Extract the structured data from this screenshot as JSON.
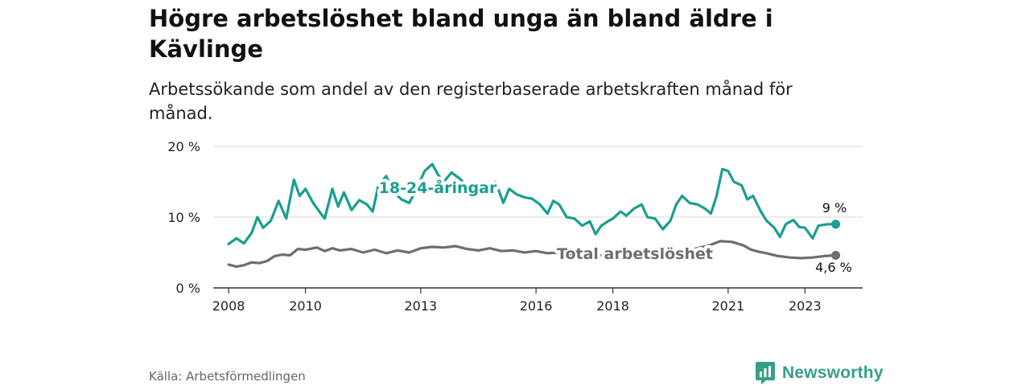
{
  "title": "Högre arbetslöshet bland unga än bland äldre i Kävlinge",
  "subtitle": "Arbetssökande som andel av den registerbaserade arbetskraften månad för månad.",
  "source": "Källa: Arbetsförmedlingen",
  "brand": {
    "name": "Newsworthy",
    "icon": "newsworthy-logo-icon",
    "color": "#35a087"
  },
  "chart_data": {
    "type": "line",
    "y_ticks": [
      {
        "value": 0,
        "label": "0 %"
      },
      {
        "value": 10,
        "label": "10 %"
      },
      {
        "value": 20,
        "label": "20 %"
      }
    ],
    "x_ticks": [
      {
        "value": 2008,
        "label": "2008"
      },
      {
        "value": 2010,
        "label": "2010"
      },
      {
        "value": 2013,
        "label": "2013"
      },
      {
        "value": 2016,
        "label": "2016"
      },
      {
        "value": 2018,
        "label": "2018"
      },
      {
        "value": 2021,
        "label": "2021"
      },
      {
        "value": 2023,
        "label": "2023"
      }
    ],
    "xlim": [
      2007.6,
      2024.5
    ],
    "ylim": [
      0,
      20
    ],
    "grid": true,
    "series": [
      {
        "name": "18-24-åringar",
        "color": "#1a9e8f",
        "end_label": "9 %",
        "points": [
          [
            2008.0,
            6.2
          ],
          [
            2008.2,
            7.0
          ],
          [
            2008.4,
            6.3
          ],
          [
            2008.6,
            7.8
          ],
          [
            2008.75,
            10.0
          ],
          [
            2008.9,
            8.5
          ],
          [
            2009.1,
            9.5
          ],
          [
            2009.3,
            12.3
          ],
          [
            2009.5,
            9.8
          ],
          [
            2009.7,
            15.3
          ],
          [
            2009.85,
            13.0
          ],
          [
            2010.0,
            14.0
          ],
          [
            2010.2,
            12.0
          ],
          [
            2010.4,
            10.5
          ],
          [
            2010.5,
            9.8
          ],
          [
            2010.7,
            14.0
          ],
          [
            2010.85,
            11.5
          ],
          [
            2011.0,
            13.5
          ],
          [
            2011.2,
            11.0
          ],
          [
            2011.4,
            12.4
          ],
          [
            2011.6,
            11.8
          ],
          [
            2011.75,
            10.8
          ],
          [
            2011.9,
            14.5
          ],
          [
            2012.1,
            15.8
          ],
          [
            2012.3,
            13.5
          ],
          [
            2012.5,
            12.5
          ],
          [
            2012.7,
            12.0
          ],
          [
            2012.9,
            14.0
          ],
          [
            2013.1,
            16.5
          ],
          [
            2013.3,
            17.5
          ],
          [
            2013.45,
            16.0
          ],
          [
            2013.6,
            15.0
          ],
          [
            2013.8,
            16.3
          ],
          [
            2014.0,
            15.5
          ],
          [
            2014.2,
            14.5
          ],
          [
            2014.4,
            13.5
          ],
          [
            2014.6,
            13.8
          ],
          [
            2014.8,
            14.5
          ],
          [
            2014.95,
            15.0
          ],
          [
            2015.15,
            12.0
          ],
          [
            2015.3,
            14.0
          ],
          [
            2015.5,
            13.2
          ],
          [
            2015.7,
            12.8
          ],
          [
            2015.9,
            12.6
          ],
          [
            2016.1,
            11.8
          ],
          [
            2016.3,
            10.5
          ],
          [
            2016.45,
            12.3
          ],
          [
            2016.6,
            11.8
          ],
          [
            2016.8,
            10.0
          ],
          [
            2017.0,
            9.8
          ],
          [
            2017.2,
            8.8
          ],
          [
            2017.4,
            9.4
          ],
          [
            2017.55,
            7.6
          ],
          [
            2017.7,
            8.8
          ],
          [
            2017.9,
            9.5
          ],
          [
            2018.0,
            9.8
          ],
          [
            2018.2,
            10.8
          ],
          [
            2018.35,
            10.2
          ],
          [
            2018.55,
            11.2
          ],
          [
            2018.75,
            11.8
          ],
          [
            2018.9,
            10.0
          ],
          [
            2019.1,
            9.8
          ],
          [
            2019.3,
            8.3
          ],
          [
            2019.5,
            9.5
          ],
          [
            2019.65,
            11.8
          ],
          [
            2019.8,
            13.0
          ],
          [
            2020.0,
            12.0
          ],
          [
            2020.2,
            11.8
          ],
          [
            2020.4,
            11.2
          ],
          [
            2020.55,
            10.5
          ],
          [
            2020.7,
            13.0
          ],
          [
            2020.85,
            16.8
          ],
          [
            2021.0,
            16.5
          ],
          [
            2021.15,
            15.0
          ],
          [
            2021.35,
            14.5
          ],
          [
            2021.5,
            12.5
          ],
          [
            2021.65,
            13.0
          ],
          [
            2021.85,
            10.8
          ],
          [
            2022.0,
            9.5
          ],
          [
            2022.2,
            8.5
          ],
          [
            2022.35,
            7.2
          ],
          [
            2022.5,
            9.0
          ],
          [
            2022.7,
            9.6
          ],
          [
            2022.85,
            8.6
          ],
          [
            2023.0,
            8.5
          ],
          [
            2023.2,
            7.0
          ],
          [
            2023.35,
            8.8
          ],
          [
            2023.6,
            9.0
          ],
          [
            2023.8,
            9.0
          ]
        ]
      },
      {
        "name": "Total arbetslöshet",
        "color": "#6e6e6e",
        "end_label": "4,6 %",
        "points": [
          [
            2008.0,
            3.3
          ],
          [
            2008.2,
            3.0
          ],
          [
            2008.4,
            3.2
          ],
          [
            2008.6,
            3.6
          ],
          [
            2008.8,
            3.5
          ],
          [
            2009.0,
            3.8
          ],
          [
            2009.2,
            4.5
          ],
          [
            2009.4,
            4.7
          ],
          [
            2009.6,
            4.6
          ],
          [
            2009.8,
            5.5
          ],
          [
            2010.0,
            5.4
          ],
          [
            2010.3,
            5.7
          ],
          [
            2010.5,
            5.2
          ],
          [
            2010.7,
            5.6
          ],
          [
            2010.9,
            5.3
          ],
          [
            2011.2,
            5.5
          ],
          [
            2011.5,
            5.0
          ],
          [
            2011.8,
            5.4
          ],
          [
            2012.1,
            4.9
          ],
          [
            2012.4,
            5.3
          ],
          [
            2012.7,
            5.0
          ],
          [
            2013.0,
            5.6
          ],
          [
            2013.3,
            5.8
          ],
          [
            2013.6,
            5.7
          ],
          [
            2013.9,
            5.9
          ],
          [
            2014.2,
            5.5
          ],
          [
            2014.5,
            5.3
          ],
          [
            2014.8,
            5.6
          ],
          [
            2015.1,
            5.2
          ],
          [
            2015.4,
            5.3
          ],
          [
            2015.7,
            5.0
          ],
          [
            2016.0,
            5.2
          ],
          [
            2016.3,
            4.9
          ],
          [
            2016.6,
            5.0
          ],
          [
            2016.9,
            4.7
          ],
          [
            2017.2,
            4.6
          ],
          [
            2017.5,
            4.8
          ],
          [
            2017.8,
            4.5
          ],
          [
            2018.1,
            4.6
          ],
          [
            2018.4,
            4.5
          ],
          [
            2018.7,
            4.7
          ],
          [
            2019.0,
            4.6
          ],
          [
            2019.3,
            4.8
          ],
          [
            2019.6,
            5.0
          ],
          [
            2019.9,
            5.2
          ],
          [
            2020.2,
            5.6
          ],
          [
            2020.5,
            6.0
          ],
          [
            2020.8,
            6.6
          ],
          [
            2021.1,
            6.5
          ],
          [
            2021.4,
            6.0
          ],
          [
            2021.6,
            5.4
          ],
          [
            2021.8,
            5.1
          ],
          [
            2022.0,
            4.9
          ],
          [
            2022.3,
            4.5
          ],
          [
            2022.6,
            4.3
          ],
          [
            2022.9,
            4.2
          ],
          [
            2023.2,
            4.3
          ],
          [
            2023.5,
            4.5
          ],
          [
            2023.8,
            4.6
          ]
        ]
      }
    ]
  }
}
